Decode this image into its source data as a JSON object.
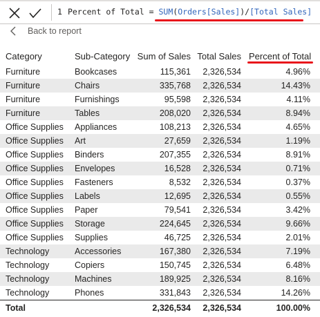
{
  "formula_bar": {
    "cancel_icon": "x-icon",
    "commit_icon": "checkmark-icon",
    "line_number": "1",
    "measure_name": "Percent of Total",
    "equals": " = ",
    "function": "SUM",
    "arg_open": "(",
    "column_ref": "Orders[Sales]",
    "arg_close": ")",
    "divide": "/",
    "measure_ref": "[Total Sales]",
    "highlight_color": "#e8141b"
  },
  "back": {
    "label": "Back to report",
    "icon": "chevron-left-icon"
  },
  "table": {
    "columns": [
      "Category",
      "Sub-Category",
      "Sum of Sales",
      "Total Sales",
      "Percent of Total"
    ],
    "rows": [
      [
        "Furniture",
        "Bookcases",
        "115,361",
        "2,326,534",
        "4.96%"
      ],
      [
        "Furniture",
        "Chairs",
        "335,768",
        "2,326,534",
        "14.43%"
      ],
      [
        "Furniture",
        "Furnishings",
        "95,598",
        "2,326,534",
        "4.11%"
      ],
      [
        "Furniture",
        "Tables",
        "208,020",
        "2,326,534",
        "8.94%"
      ],
      [
        "Office Supplies",
        "Appliances",
        "108,213",
        "2,326,534",
        "4.65%"
      ],
      [
        "Office Supplies",
        "Art",
        "27,659",
        "2,326,534",
        "1.19%"
      ],
      [
        "Office Supplies",
        "Binders",
        "207,355",
        "2,326,534",
        "8.91%"
      ],
      [
        "Office Supplies",
        "Envelopes",
        "16,528",
        "2,326,534",
        "0.71%"
      ],
      [
        "Office Supplies",
        "Fasteners",
        "8,532",
        "2,326,534",
        "0.37%"
      ],
      [
        "Office Supplies",
        "Labels",
        "12,695",
        "2,326,534",
        "0.55%"
      ],
      [
        "Office Supplies",
        "Paper",
        "79,541",
        "2,326,534",
        "3.42%"
      ],
      [
        "Office Supplies",
        "Storage",
        "224,645",
        "2,326,534",
        "9.66%"
      ],
      [
        "Office Supplies",
        "Supplies",
        "46,725",
        "2,326,534",
        "2.01%"
      ],
      [
        "Technology",
        "Accessories",
        "167,380",
        "2,326,534",
        "7.19%"
      ],
      [
        "Technology",
        "Copiers",
        "150,745",
        "2,326,534",
        "6.48%"
      ],
      [
        "Technology",
        "Machines",
        "189,925",
        "2,326,534",
        "8.16%"
      ],
      [
        "Technology",
        "Phones",
        "331,843",
        "2,326,534",
        "14.26%"
      ]
    ],
    "total": {
      "label": "Total",
      "sum_of_sales": "2,326,534",
      "total_sales": "2,326,534",
      "percent_of_total": "100.00%"
    },
    "alt_row_color": "#eaeaea"
  }
}
